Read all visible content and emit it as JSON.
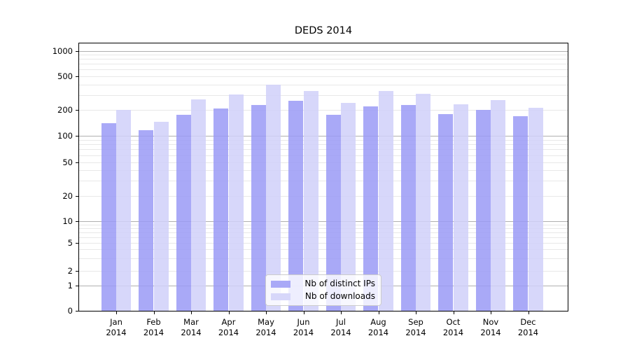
{
  "title": "DEDS 2014",
  "chart_data": {
    "type": "bar",
    "title": "DEDS 2014",
    "x_months": [
      "Jan",
      "Feb",
      "Mar",
      "Apr",
      "May",
      "Jun",
      "Jul",
      "Aug",
      "Sep",
      "Oct",
      "Nov",
      "Dec"
    ],
    "x_year": "2014",
    "series": [
      {
        "name": "Nb of distinct IPs",
        "color": "#a9a9f7",
        "values": [
          140,
          117,
          175,
          208,
          228,
          256,
          178,
          222,
          230,
          180,
          200,
          170
        ]
      },
      {
        "name": "Nb of downloads",
        "color": "#d7d7fa",
        "values": [
          203,
          145,
          268,
          306,
          400,
          335,
          243,
          335,
          310,
          234,
          263,
          215
        ]
      }
    ],
    "yscale": "symlog",
    "yticks": [
      0,
      1,
      2,
      5,
      10,
      20,
      50,
      100,
      200,
      500,
      1000
    ],
    "ylim": [
      0,
      1250
    ],
    "grid": true,
    "grid_major_color": "#b0b0b0",
    "grid_minor_color": "#e8e8e8",
    "legend_position": "lower center"
  }
}
